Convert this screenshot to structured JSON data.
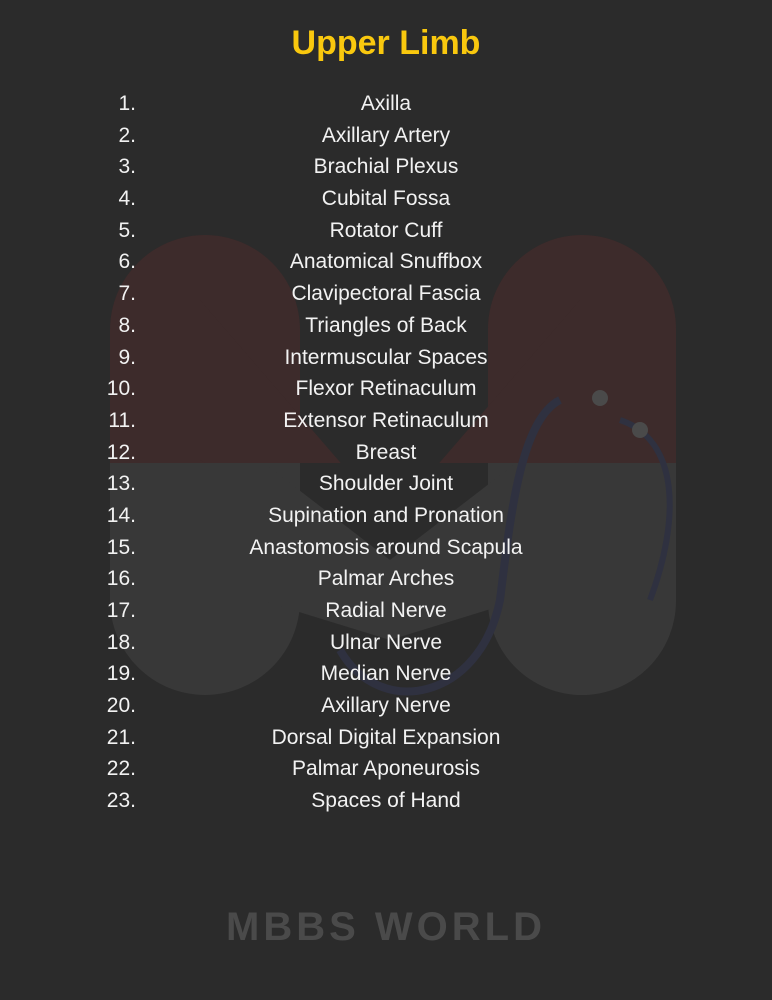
{
  "title": "Upper Limb",
  "colors": {
    "title": "#f9c80e",
    "background": "#2b2b2b",
    "text": "#f2f2f2"
  },
  "watermark": "MBBS WORLD",
  "items": [
    {
      "num": "1.",
      "label": "Axilla"
    },
    {
      "num": "2.",
      "label": "Axillary Artery"
    },
    {
      "num": "3.",
      "label": "Brachial Plexus"
    },
    {
      "num": "4.",
      "label": "Cubital Fossa"
    },
    {
      "num": "5.",
      "label": "Rotator Cuff"
    },
    {
      "num": "6.",
      "label": "Anatomical Snuffbox"
    },
    {
      "num": "7.",
      "label": "Clavipectoral Fascia"
    },
    {
      "num": "8.",
      "label": "Triangles of Back"
    },
    {
      "num": "9.",
      "label": "Intermuscular Spaces"
    },
    {
      "num": "10.",
      "label": "Flexor Retinaculum"
    },
    {
      "num": "11.",
      "label": "Extensor Retinaculum"
    },
    {
      "num": "12.",
      "label": "Breast"
    },
    {
      "num": "13.",
      "label": "Shoulder Joint"
    },
    {
      "num": "14.",
      "label": "Supination and Pronation"
    },
    {
      "num": "15.",
      "label": "Anastomosis around Scapula"
    },
    {
      "num": "16.",
      "label": "Palmar Arches"
    },
    {
      "num": "17.",
      "label": "Radial Nerve"
    },
    {
      "num": "18.",
      "label": "Ulnar Nerve"
    },
    {
      "num": "19.",
      "label": "Median Nerve"
    },
    {
      "num": "20.",
      "label": "Axillary Nerve"
    },
    {
      "num": "21.",
      "label": "Dorsal Digital Expansion"
    },
    {
      "num": "22.",
      "label": "Palmar Aponeurosis"
    },
    {
      "num": "23.",
      "label": "Spaces of Hand"
    }
  ]
}
